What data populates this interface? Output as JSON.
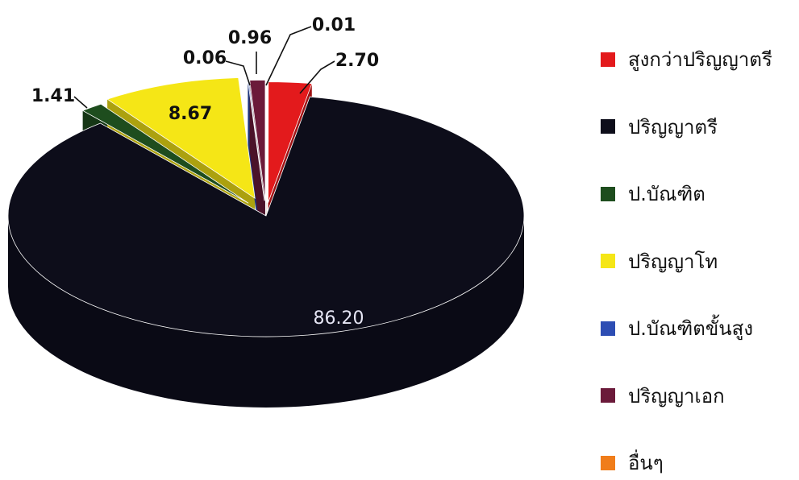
{
  "chart_data": {
    "type": "pie",
    "style": "3d-exploded",
    "title": "",
    "legend_position": "right",
    "slices": [
      {
        "name": "สูงกว่าปริญญาตรี",
        "value": 2.7,
        "label": "2.70",
        "color": "#e31a1c"
      },
      {
        "name": "ปริญญาตรี",
        "value": 86.2,
        "label": "86.20",
        "color": "#0d0d1a"
      },
      {
        "name": "ป.บัณฑิต",
        "value": 1.41,
        "label": "1.41",
        "color": "#1e4d1e"
      },
      {
        "name": "ปริญญาโท",
        "value": 8.67,
        "label": "8.67",
        "color": "#f5e616"
      },
      {
        "name": "ป.บัณฑิตขั้นสูง",
        "value": 0.06,
        "label": "0.06",
        "color": "#2d4db3"
      },
      {
        "name": "ปริญญาเอก",
        "value": 0.96,
        "label": "0.96",
        "color": "#6b1a3a"
      },
      {
        "name": "อื่นๆ",
        "value": 0.01,
        "label": "0.01",
        "color": "#f07d1a"
      }
    ]
  }
}
